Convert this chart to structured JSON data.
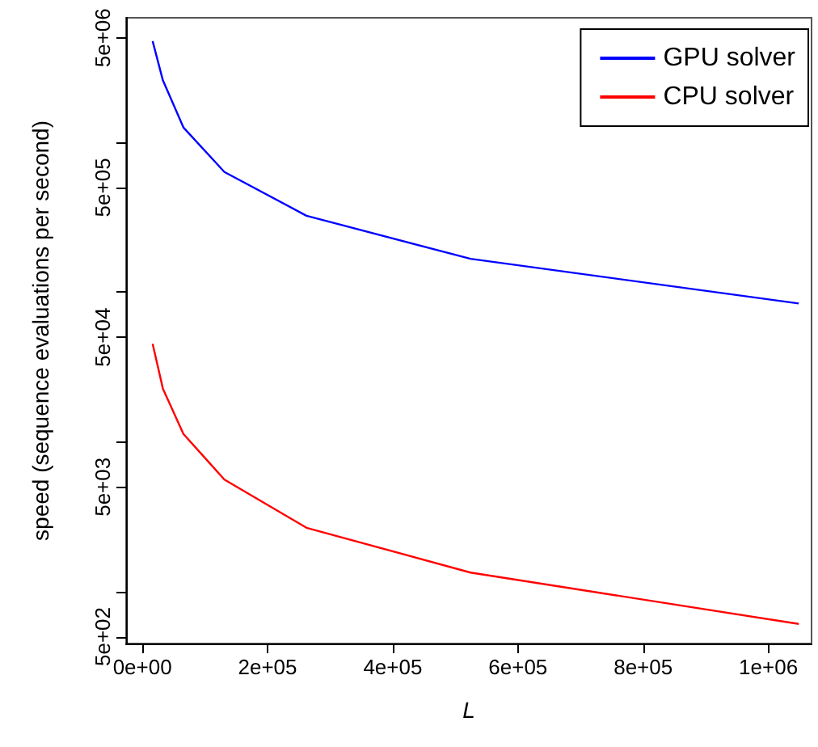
{
  "chart_data": {
    "type": "line",
    "xlabel": "L",
    "ylabel": "speed (sequence evaluations per second)",
    "x": [
      16384,
      32768,
      65536,
      131072,
      262144,
      524288,
      1048576
    ],
    "series": [
      {
        "name": "GPU solver",
        "color": "#0000ff",
        "values": [
          4750000,
          2600000,
          1260000,
          635000,
          324000,
          167000,
          84000
        ]
      },
      {
        "name": "CPU solver",
        "color": "#ff0000",
        "values": [
          45200,
          22700,
          11300,
          5600,
          2670,
          1340,
          608
        ]
      }
    ],
    "log": "y",
    "xlim": [
      -26000,
      1069000
    ],
    "ylim": [
      450,
      6800000
    ],
    "xticks": [
      {
        "value": 0,
        "label": "0e+00"
      },
      {
        "value": 200000,
        "label": "2e+05"
      },
      {
        "value": 400000,
        "label": "4e+05"
      },
      {
        "value": 600000,
        "label": "6e+05"
      },
      {
        "value": 800000,
        "label": "8e+05"
      },
      {
        "value": 1000000,
        "label": "1e+06"
      }
    ],
    "yticks": [
      {
        "value": 500,
        "label": "5e+02"
      },
      {
        "value": 1000,
        "label": null
      },
      {
        "value": 5000,
        "label": "5e+03"
      },
      {
        "value": 10000,
        "label": null
      },
      {
        "value": 50000,
        "label": "5e+04"
      },
      {
        "value": 100000,
        "label": null
      },
      {
        "value": 500000,
        "label": "5e+05"
      },
      {
        "value": 1000000,
        "label": null
      },
      {
        "value": 5000000,
        "label": "5e+06"
      }
    ],
    "grid": false,
    "legend": "top right",
    "marker": "none",
    "line_style": "solid"
  }
}
